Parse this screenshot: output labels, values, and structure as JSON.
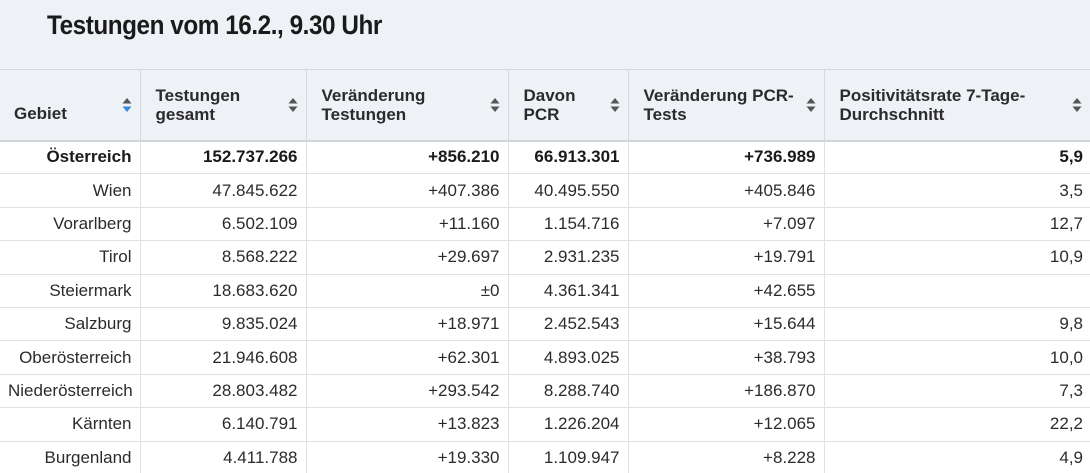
{
  "title": "Testungen vom 16.2., 9.30 Uhr",
  "accent_color": "#3b8ad9",
  "columns": [
    {
      "line1": "Gebiet",
      "line2": "",
      "sort_icon": "sort-up-down-icon",
      "sort_active": "up"
    },
    {
      "line1": "Testungen",
      "line2": "gesamt",
      "sort_icon": "sort-up-down-icon"
    },
    {
      "line1": "Veränderung",
      "line2": "Testungen",
      "sort_icon": "sort-up-down-icon"
    },
    {
      "line1": "Davon",
      "line2": "PCR",
      "sort_icon": "sort-up-down-icon"
    },
    {
      "line1": "Veränderung PCR-",
      "line2": "Tests",
      "sort_icon": "sort-up-down-icon"
    },
    {
      "line1": "Positivitätsrate 7-Tage-",
      "line2": "Durchschnitt",
      "sort_icon": "sort-up-down-icon"
    }
  ],
  "rows": [
    {
      "gebiet": "Österreich",
      "testungen": "152.737.266",
      "veraenderung": "+856.210",
      "pcr": "66.913.301",
      "veraenderung_pcr": "+736.989",
      "positivitaet": "5,9",
      "total": true
    },
    {
      "gebiet": "Wien",
      "testungen": "47.845.622",
      "veraenderung": "+407.386",
      "pcr": "40.495.550",
      "veraenderung_pcr": "+405.846",
      "positivitaet": "3,5"
    },
    {
      "gebiet": "Vorarlberg",
      "testungen": "6.502.109",
      "veraenderung": "+11.160",
      "pcr": "1.154.716",
      "veraenderung_pcr": "+7.097",
      "positivitaet": "12,7"
    },
    {
      "gebiet": "Tirol",
      "testungen": "8.568.222",
      "veraenderung": "+29.697",
      "pcr": "2.931.235",
      "veraenderung_pcr": "+19.791",
      "positivitaet": "10,9"
    },
    {
      "gebiet": "Steiermark",
      "testungen": "18.683.620",
      "veraenderung": "±0",
      "pcr": "4.361.341",
      "veraenderung_pcr": "+42.655",
      "positivitaet": ""
    },
    {
      "gebiet": "Salzburg",
      "testungen": "9.835.024",
      "veraenderung": "+18.971",
      "pcr": "2.452.543",
      "veraenderung_pcr": "+15.644",
      "positivitaet": "9,8"
    },
    {
      "gebiet": "Oberösterreich",
      "testungen": "21.946.608",
      "veraenderung": "+62.301",
      "pcr": "4.893.025",
      "veraenderung_pcr": "+38.793",
      "positivitaet": "10,0"
    },
    {
      "gebiet": "Niederösterreich",
      "testungen": "28.803.482",
      "veraenderung": "+293.542",
      "pcr": "8.288.740",
      "veraenderung_pcr": "+186.870",
      "positivitaet": "7,3"
    },
    {
      "gebiet": "Kärnten",
      "testungen": "6.140.791",
      "veraenderung": "+13.823",
      "pcr": "1.226.204",
      "veraenderung_pcr": "+12.065",
      "positivitaet": "22,2"
    },
    {
      "gebiet": "Burgenland",
      "testungen": "4.411.788",
      "veraenderung": "+19.330",
      "pcr": "1.109.947",
      "veraenderung_pcr": "+8.228",
      "positivitaet": "4,9"
    }
  ]
}
